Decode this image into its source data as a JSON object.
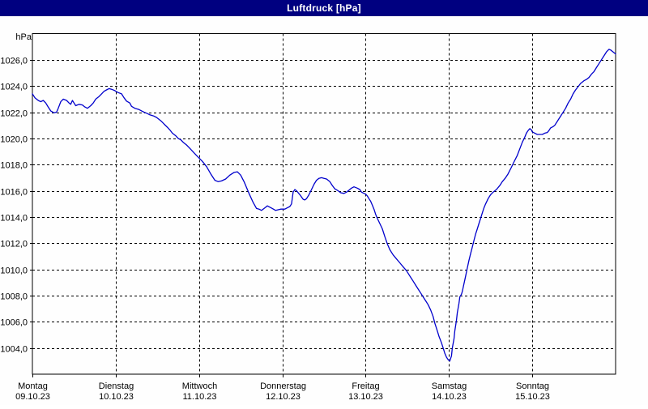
{
  "window": {
    "title": "Luftdruck [hPa]"
  },
  "colors": {
    "titlebar_bg": "#000080",
    "window_border": "#000080",
    "title_text": "#ffffff",
    "curve": "#0000CC",
    "grid": "#000000",
    "frame": "#000000",
    "label_text": "#000000",
    "background": "#fefefe"
  },
  "chart_data": {
    "type": "line",
    "title": "Luftdruck [hPa]",
    "ylabel": "hPa",
    "grid": "dashed",
    "legend_position": "none",
    "ylim": [
      1002,
      1028
    ],
    "ytick_step": 2,
    "yticks": [
      {
        "value": 1026,
        "label": "1026,0"
      },
      {
        "value": 1024,
        "label": "1024,0"
      },
      {
        "value": 1022,
        "label": "1022,0"
      },
      {
        "value": 1020,
        "label": "1020,0"
      },
      {
        "value": 1018,
        "label": "1018,0"
      },
      {
        "value": 1016,
        "label": "1016,0"
      },
      {
        "value": 1014,
        "label": "1014,0"
      },
      {
        "value": 1012,
        "label": "1012,0"
      },
      {
        "value": 1010,
        "label": "1010,0"
      },
      {
        "value": 1008,
        "label": "1008,0"
      },
      {
        "value": 1006,
        "label": "1006,0"
      },
      {
        "value": 1004,
        "label": "1004,0"
      }
    ],
    "xlim_days": [
      0,
      7
    ],
    "xticks": [
      {
        "day": 0,
        "label": "Montag",
        "date": "09.10.23"
      },
      {
        "day": 1,
        "label": "Dienstag",
        "date": "10.10.23"
      },
      {
        "day": 2,
        "label": "Mittwoch",
        "date": "11.10.23"
      },
      {
        "day": 3,
        "label": "Donnerstag",
        "date": "12.10.23"
      },
      {
        "day": 4,
        "label": "Freitag",
        "date": "13.10.23"
      },
      {
        "day": 5,
        "label": "Samstag",
        "date": "14.10.23"
      },
      {
        "day": 6,
        "label": "Sonntag",
        "date": "15.10.23"
      }
    ],
    "series": [
      {
        "name": "Luftdruck",
        "color": "#0000CC",
        "points": [
          [
            0.0,
            1023.4
          ],
          [
            0.03,
            1023.1
          ],
          [
            0.07,
            1022.9
          ],
          [
            0.1,
            1022.8
          ],
          [
            0.13,
            1022.9
          ],
          [
            0.16,
            1022.7
          ],
          [
            0.19,
            1022.4
          ],
          [
            0.22,
            1022.1
          ],
          [
            0.26,
            1021.95
          ],
          [
            0.29,
            1022.0
          ],
          [
            0.31,
            1022.3
          ],
          [
            0.34,
            1022.8
          ],
          [
            0.37,
            1023.0
          ],
          [
            0.41,
            1022.9
          ],
          [
            0.44,
            1022.7
          ],
          [
            0.46,
            1022.6
          ],
          [
            0.48,
            1022.9
          ],
          [
            0.5,
            1022.7
          ],
          [
            0.52,
            1022.5
          ],
          [
            0.54,
            1022.55
          ],
          [
            0.56,
            1022.6
          ],
          [
            0.6,
            1022.55
          ],
          [
            0.63,
            1022.4
          ],
          [
            0.66,
            1022.3
          ],
          [
            0.7,
            1022.5
          ],
          [
            0.73,
            1022.7
          ],
          [
            0.76,
            1023.0
          ],
          [
            0.8,
            1023.2
          ],
          [
            0.83,
            1023.4
          ],
          [
            0.86,
            1023.6
          ],
          [
            0.89,
            1023.7
          ],
          [
            0.92,
            1023.8
          ],
          [
            0.95,
            1023.75
          ],
          [
            0.99,
            1023.65
          ],
          [
            1.0,
            1023.6
          ],
          [
            1.03,
            1023.5
          ],
          [
            1.07,
            1023.4
          ],
          [
            1.1,
            1023.1
          ],
          [
            1.13,
            1022.85
          ],
          [
            1.17,
            1022.7
          ],
          [
            1.19,
            1022.45
          ],
          [
            1.23,
            1022.3
          ],
          [
            1.28,
            1022.2
          ],
          [
            1.31,
            1022.1
          ],
          [
            1.34,
            1022.0
          ],
          [
            1.38,
            1021.9
          ],
          [
            1.41,
            1021.8
          ],
          [
            1.46,
            1021.7
          ],
          [
            1.49,
            1021.6
          ],
          [
            1.52,
            1021.45
          ],
          [
            1.55,
            1021.3
          ],
          [
            1.58,
            1021.1
          ],
          [
            1.62,
            1020.85
          ],
          [
            1.65,
            1020.65
          ],
          [
            1.68,
            1020.4
          ],
          [
            1.72,
            1020.2
          ],
          [
            1.75,
            1020.0
          ],
          [
            1.78,
            1019.9
          ],
          [
            1.81,
            1019.7
          ],
          [
            1.85,
            1019.5
          ],
          [
            1.88,
            1019.3
          ],
          [
            1.91,
            1019.1
          ],
          [
            1.94,
            1018.9
          ],
          [
            1.97,
            1018.7
          ],
          [
            2.0,
            1018.5
          ],
          [
            2.04,
            1018.25
          ],
          [
            2.09,
            1017.85
          ],
          [
            2.14,
            1017.3
          ],
          [
            2.19,
            1016.8
          ],
          [
            2.23,
            1016.7
          ],
          [
            2.27,
            1016.75
          ],
          [
            2.32,
            1016.9
          ],
          [
            2.37,
            1017.2
          ],
          [
            2.42,
            1017.4
          ],
          [
            2.46,
            1017.45
          ],
          [
            2.5,
            1017.2
          ],
          [
            2.54,
            1016.7
          ],
          [
            2.6,
            1015.8
          ],
          [
            2.65,
            1015.1
          ],
          [
            2.69,
            1014.65
          ],
          [
            2.72,
            1014.6
          ],
          [
            2.75,
            1014.5
          ],
          [
            2.79,
            1014.7
          ],
          [
            2.82,
            1014.85
          ],
          [
            2.85,
            1014.75
          ],
          [
            2.88,
            1014.65
          ],
          [
            2.92,
            1014.5
          ],
          [
            2.95,
            1014.55
          ],
          [
            2.98,
            1014.6
          ],
          [
            3.0,
            1014.6
          ],
          [
            3.03,
            1014.6
          ],
          [
            3.06,
            1014.7
          ],
          [
            3.09,
            1014.8
          ],
          [
            3.11,
            1015.0
          ],
          [
            3.13,
            1015.9
          ],
          [
            3.15,
            1016.1
          ],
          [
            3.17,
            1016.0
          ],
          [
            3.21,
            1015.7
          ],
          [
            3.25,
            1015.35
          ],
          [
            3.27,
            1015.3
          ],
          [
            3.29,
            1015.4
          ],
          [
            3.32,
            1015.7
          ],
          [
            3.35,
            1016.1
          ],
          [
            3.38,
            1016.5
          ],
          [
            3.41,
            1016.8
          ],
          [
            3.44,
            1016.95
          ],
          [
            3.47,
            1017.0
          ],
          [
            3.5,
            1016.95
          ],
          [
            3.53,
            1016.9
          ],
          [
            3.57,
            1016.7
          ],
          [
            3.6,
            1016.4
          ],
          [
            3.63,
            1016.15
          ],
          [
            3.67,
            1016.0
          ],
          [
            3.7,
            1015.85
          ],
          [
            3.74,
            1015.8
          ],
          [
            3.77,
            1015.9
          ],
          [
            3.8,
            1016.05
          ],
          [
            3.83,
            1016.2
          ],
          [
            3.86,
            1016.3
          ],
          [
            3.9,
            1016.2
          ],
          [
            3.93,
            1016.1
          ],
          [
            3.95,
            1015.9
          ],
          [
            3.98,
            1015.8
          ],
          [
            4.0,
            1015.75
          ],
          [
            4.02,
            1015.6
          ],
          [
            4.04,
            1015.4
          ],
          [
            4.06,
            1015.2
          ],
          [
            4.08,
            1014.9
          ],
          [
            4.1,
            1014.6
          ],
          [
            4.12,
            1014.2
          ],
          [
            4.14,
            1013.9
          ],
          [
            4.17,
            1013.5
          ],
          [
            4.2,
            1013.1
          ],
          [
            4.23,
            1012.5
          ],
          [
            4.26,
            1011.95
          ],
          [
            4.29,
            1011.5
          ],
          [
            4.33,
            1011.1
          ],
          [
            4.37,
            1010.8
          ],
          [
            4.41,
            1010.5
          ],
          [
            4.45,
            1010.2
          ],
          [
            4.49,
            1009.9
          ],
          [
            4.53,
            1009.5
          ],
          [
            4.57,
            1009.1
          ],
          [
            4.6,
            1008.8
          ],
          [
            4.63,
            1008.5
          ],
          [
            4.66,
            1008.2
          ],
          [
            4.69,
            1007.9
          ],
          [
            4.72,
            1007.6
          ],
          [
            4.75,
            1007.3
          ],
          [
            4.78,
            1006.9
          ],
          [
            4.81,
            1006.4
          ],
          [
            4.83,
            1005.9
          ],
          [
            4.86,
            1005.3
          ],
          [
            4.88,
            1004.9
          ],
          [
            4.91,
            1004.4
          ],
          [
            4.93,
            1004.0
          ],
          [
            4.95,
            1003.6
          ],
          [
            4.97,
            1003.3
          ],
          [
            4.99,
            1003.1
          ],
          [
            5.01,
            1003.0
          ],
          [
            5.03,
            1003.4
          ],
          [
            5.04,
            1004.0
          ],
          [
            5.06,
            1004.7
          ],
          [
            5.07,
            1005.3
          ],
          [
            5.09,
            1006.1
          ],
          [
            5.1,
            1006.7
          ],
          [
            5.12,
            1007.4
          ],
          [
            5.13,
            1007.9
          ],
          [
            5.15,
            1008.1
          ],
          [
            5.16,
            1008.3
          ],
          [
            5.18,
            1008.9
          ],
          [
            5.2,
            1009.5
          ],
          [
            5.22,
            1010.1
          ],
          [
            5.24,
            1010.7
          ],
          [
            5.26,
            1011.2
          ],
          [
            5.28,
            1011.7
          ],
          [
            5.3,
            1012.2
          ],
          [
            5.32,
            1012.7
          ],
          [
            5.34,
            1013.1
          ],
          [
            5.36,
            1013.5
          ],
          [
            5.38,
            1013.9
          ],
          [
            5.4,
            1014.3
          ],
          [
            5.42,
            1014.7
          ],
          [
            5.44,
            1015.0
          ],
          [
            5.47,
            1015.4
          ],
          [
            5.5,
            1015.7
          ],
          [
            5.53,
            1015.9
          ],
          [
            5.57,
            1016.1
          ],
          [
            5.61,
            1016.4
          ],
          [
            5.64,
            1016.7
          ],
          [
            5.68,
            1017.0
          ],
          [
            5.71,
            1017.3
          ],
          [
            5.75,
            1017.8
          ],
          [
            5.78,
            1018.2
          ],
          [
            5.82,
            1018.7
          ],
          [
            5.85,
            1019.2
          ],
          [
            5.88,
            1019.7
          ],
          [
            5.91,
            1020.1
          ],
          [
            5.93,
            1020.4
          ],
          [
            5.95,
            1020.6
          ],
          [
            5.97,
            1020.75
          ],
          [
            5.99,
            1020.65
          ],
          [
            6.0,
            1020.5
          ],
          [
            6.03,
            1020.4
          ],
          [
            6.06,
            1020.3
          ],
          [
            6.09,
            1020.3
          ],
          [
            6.12,
            1020.3
          ],
          [
            6.15,
            1020.4
          ],
          [
            6.18,
            1020.45
          ],
          [
            6.2,
            1020.6
          ],
          [
            6.22,
            1020.8
          ],
          [
            6.25,
            1020.9
          ],
          [
            6.27,
            1021.0
          ],
          [
            6.3,
            1021.3
          ],
          [
            6.33,
            1021.6
          ],
          [
            6.36,
            1021.9
          ],
          [
            6.4,
            1022.3
          ],
          [
            6.43,
            1022.7
          ],
          [
            6.46,
            1023.0
          ],
          [
            6.49,
            1023.4
          ],
          [
            6.52,
            1023.7
          ],
          [
            6.55,
            1023.95
          ],
          [
            6.58,
            1024.2
          ],
          [
            6.62,
            1024.4
          ],
          [
            6.65,
            1024.5
          ],
          [
            6.68,
            1024.65
          ],
          [
            6.71,
            1024.9
          ],
          [
            6.74,
            1025.1
          ],
          [
            6.77,
            1025.4
          ],
          [
            6.8,
            1025.7
          ],
          [
            6.83,
            1026.0
          ],
          [
            6.86,
            1026.3
          ],
          [
            6.89,
            1026.6
          ],
          [
            6.92,
            1026.8
          ],
          [
            6.94,
            1026.75
          ],
          [
            6.97,
            1026.6
          ],
          [
            7.0,
            1026.45
          ]
        ]
      }
    ]
  }
}
